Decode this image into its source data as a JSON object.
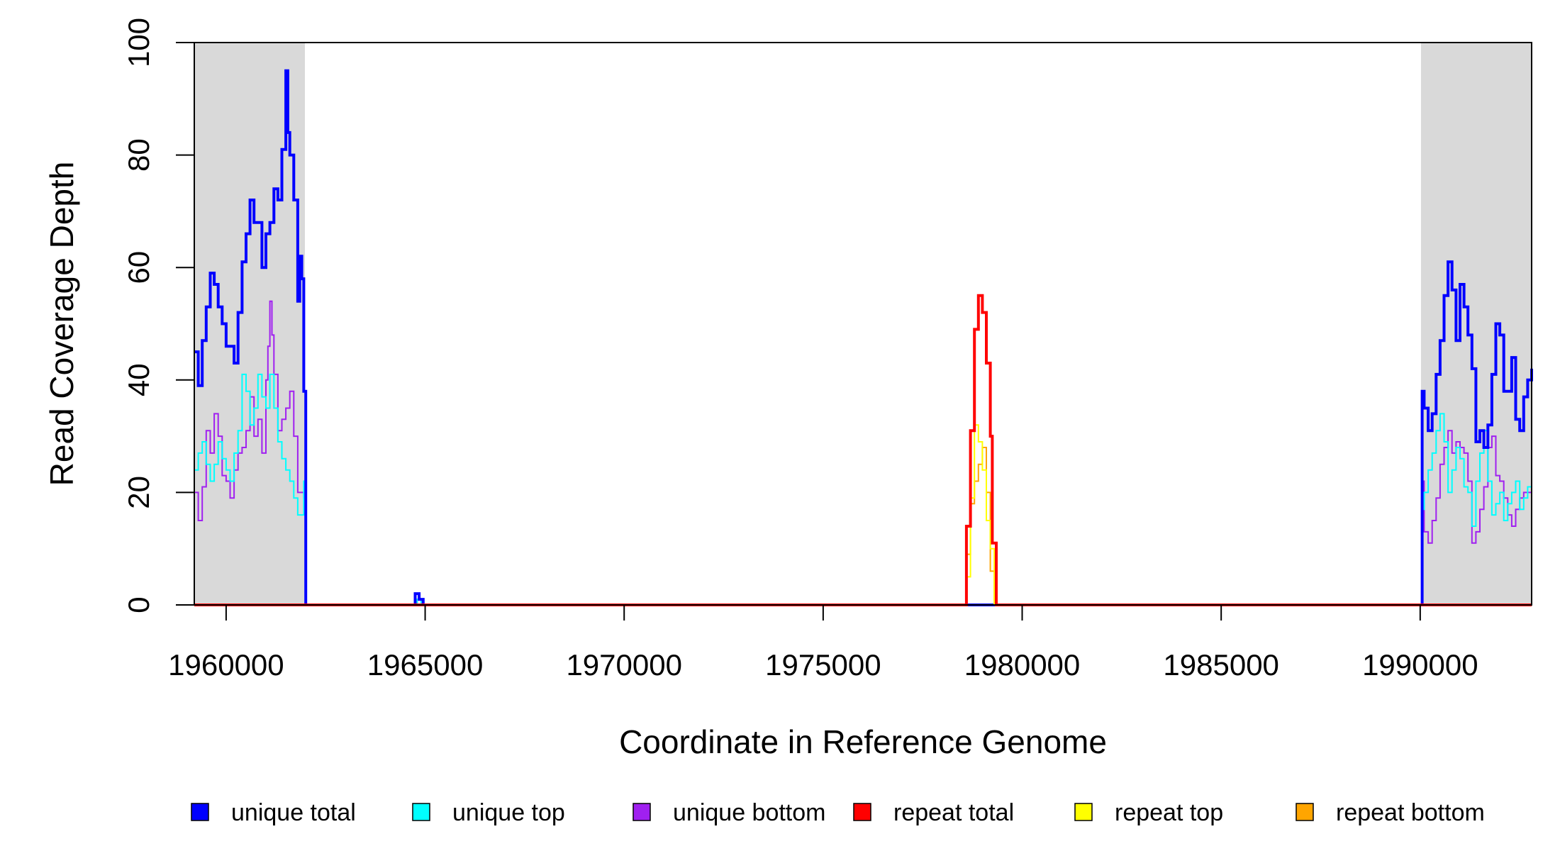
{
  "chart_data": {
    "type": "line",
    "xlabel": "Coordinate in Reference Genome",
    "ylabel": "Read Coverage Depth",
    "xlim": [
      1959200,
      1992800
    ],
    "ylim": [
      0,
      100
    ],
    "x_ticks": [
      {
        "value": 1960000,
        "label": "1960000"
      },
      {
        "value": 1965000,
        "label": "1965000"
      },
      {
        "value": 1970000,
        "label": "1970000"
      },
      {
        "value": 1975000,
        "label": "1975000"
      },
      {
        "value": 1980000,
        "label": "1980000"
      },
      {
        "value": 1985000,
        "label": "1985000"
      },
      {
        "value": 1990000,
        "label": "1990000"
      }
    ],
    "y_ticks": [
      {
        "value": 0,
        "label": "0"
      },
      {
        "value": 20,
        "label": "20"
      },
      {
        "value": 40,
        "label": "40"
      },
      {
        "value": 60,
        "label": "60"
      },
      {
        "value": 80,
        "label": "80"
      },
      {
        "value": 100,
        "label": "100"
      }
    ],
    "shaded_regions": [
      {
        "x0": 1959200,
        "x1": 1961980,
        "color": "#d9d9d9"
      },
      {
        "x0": 1990020,
        "x1": 1992800,
        "color": "#d9d9d9"
      }
    ],
    "legend_position": "bottom",
    "series": [
      {
        "name": "unique bottom",
        "color": "#a020f0",
        "width": 2,
        "points": [
          [
            1959200,
            20
          ],
          [
            1959300,
            15
          ],
          [
            1959400,
            21
          ],
          [
            1959500,
            31
          ],
          [
            1959600,
            27
          ],
          [
            1959700,
            34
          ],
          [
            1959800,
            30
          ],
          [
            1959900,
            23
          ],
          [
            1960000,
            22
          ],
          [
            1960100,
            19
          ],
          [
            1960200,
            24
          ],
          [
            1960300,
            27
          ],
          [
            1960400,
            28
          ],
          [
            1960500,
            31
          ],
          [
            1960600,
            37
          ],
          [
            1960700,
            30
          ],
          [
            1960800,
            33
          ],
          [
            1960900,
            27
          ],
          [
            1961000,
            40
          ],
          [
            1961050,
            46
          ],
          [
            1961100,
            54
          ],
          [
            1961150,
            48
          ],
          [
            1961200,
            41
          ],
          [
            1961300,
            31
          ],
          [
            1961400,
            33
          ],
          [
            1961500,
            35
          ],
          [
            1961600,
            38
          ],
          [
            1961700,
            30
          ],
          [
            1961800,
            20
          ],
          [
            1961950,
            19
          ],
          [
            1962000,
            0
          ],
          [
            1964700,
            0
          ],
          [
            1964800,
            1
          ],
          [
            1964900,
            0
          ],
          [
            1990000,
            0
          ],
          [
            1990050,
            22
          ],
          [
            1990100,
            13
          ],
          [
            1990200,
            11
          ],
          [
            1990300,
            15
          ],
          [
            1990400,
            19
          ],
          [
            1990500,
            25
          ],
          [
            1990600,
            28
          ],
          [
            1990700,
            31
          ],
          [
            1990800,
            27
          ],
          [
            1990900,
            29
          ],
          [
            1991000,
            28
          ],
          [
            1991100,
            27
          ],
          [
            1991200,
            22
          ],
          [
            1991300,
            11
          ],
          [
            1991400,
            13
          ],
          [
            1991500,
            17
          ],
          [
            1991600,
            21
          ],
          [
            1991700,
            28
          ],
          [
            1991800,
            30
          ],
          [
            1991900,
            23
          ],
          [
            1992000,
            22
          ],
          [
            1992100,
            19
          ],
          [
            1992200,
            16
          ],
          [
            1992300,
            14
          ],
          [
            1992400,
            17
          ],
          [
            1992500,
            19
          ],
          [
            1992600,
            20
          ],
          [
            1992800,
            20
          ]
        ]
      },
      {
        "name": "unique top",
        "color": "#00ffff",
        "width": 2,
        "points": [
          [
            1959200,
            24
          ],
          [
            1959300,
            27
          ],
          [
            1959400,
            29
          ],
          [
            1959500,
            25
          ],
          [
            1959600,
            22
          ],
          [
            1959700,
            25
          ],
          [
            1959800,
            29
          ],
          [
            1959900,
            26
          ],
          [
            1960000,
            24
          ],
          [
            1960100,
            22
          ],
          [
            1960200,
            27
          ],
          [
            1960300,
            31
          ],
          [
            1960400,
            41
          ],
          [
            1960500,
            38
          ],
          [
            1960600,
            32
          ],
          [
            1960700,
            35
          ],
          [
            1960800,
            41
          ],
          [
            1960900,
            37
          ],
          [
            1961000,
            35
          ],
          [
            1961100,
            41
          ],
          [
            1961200,
            35
          ],
          [
            1961300,
            29
          ],
          [
            1961400,
            26
          ],
          [
            1961500,
            24
          ],
          [
            1961600,
            22
          ],
          [
            1961700,
            19
          ],
          [
            1961800,
            16
          ],
          [
            1961950,
            22
          ],
          [
            1962000,
            0
          ],
          [
            1964700,
            0
          ],
          [
            1964800,
            1
          ],
          [
            1964900,
            0
          ],
          [
            1990000,
            0
          ],
          [
            1990050,
            17
          ],
          [
            1990100,
            20
          ],
          [
            1990200,
            24
          ],
          [
            1990300,
            27
          ],
          [
            1990400,
            31
          ],
          [
            1990500,
            34
          ],
          [
            1990600,
            29
          ],
          [
            1990700,
            20
          ],
          [
            1990800,
            24
          ],
          [
            1990900,
            28
          ],
          [
            1991000,
            26
          ],
          [
            1991100,
            21
          ],
          [
            1991200,
            20
          ],
          [
            1991300,
            14
          ],
          [
            1991400,
            22
          ],
          [
            1991500,
            27
          ],
          [
            1991600,
            31
          ],
          [
            1991700,
            22
          ],
          [
            1991800,
            16
          ],
          [
            1991900,
            18
          ],
          [
            1992000,
            20
          ],
          [
            1992100,
            15
          ],
          [
            1992200,
            18
          ],
          [
            1992300,
            20
          ],
          [
            1992400,
            22
          ],
          [
            1992500,
            17
          ],
          [
            1992600,
            19
          ],
          [
            1992700,
            21
          ],
          [
            1992800,
            21
          ]
        ]
      },
      {
        "name": "unique total",
        "color": "#0000ff",
        "width": 4,
        "points": [
          [
            1959200,
            45
          ],
          [
            1959300,
            39
          ],
          [
            1959400,
            47
          ],
          [
            1959500,
            53
          ],
          [
            1959600,
            59
          ],
          [
            1959700,
            57
          ],
          [
            1959800,
            53
          ],
          [
            1959900,
            50
          ],
          [
            1960000,
            46
          ],
          [
            1960100,
            46
          ],
          [
            1960200,
            43
          ],
          [
            1960300,
            52
          ],
          [
            1960400,
            61
          ],
          [
            1960500,
            66
          ],
          [
            1960600,
            72
          ],
          [
            1960700,
            68
          ],
          [
            1960800,
            68
          ],
          [
            1960900,
            60
          ],
          [
            1961000,
            66
          ],
          [
            1961100,
            68
          ],
          [
            1961200,
            74
          ],
          [
            1961300,
            72
          ],
          [
            1961400,
            81
          ],
          [
            1961500,
            95
          ],
          [
            1961550,
            84
          ],
          [
            1961600,
            80
          ],
          [
            1961700,
            72
          ],
          [
            1961800,
            54
          ],
          [
            1961850,
            62
          ],
          [
            1961900,
            58
          ],
          [
            1961950,
            38
          ],
          [
            1962000,
            0
          ],
          [
            1964650,
            0
          ],
          [
            1964750,
            2
          ],
          [
            1964850,
            1
          ],
          [
            1964950,
            0
          ],
          [
            1990000,
            0
          ],
          [
            1990050,
            38
          ],
          [
            1990100,
            35
          ],
          [
            1990200,
            31
          ],
          [
            1990300,
            34
          ],
          [
            1990400,
            41
          ],
          [
            1990500,
            47
          ],
          [
            1990600,
            55
          ],
          [
            1990700,
            61
          ],
          [
            1990800,
            56
          ],
          [
            1990900,
            47
          ],
          [
            1991000,
            57
          ],
          [
            1991100,
            53
          ],
          [
            1991200,
            48
          ],
          [
            1991300,
            42
          ],
          [
            1991400,
            29
          ],
          [
            1991500,
            31
          ],
          [
            1991600,
            28
          ],
          [
            1991700,
            32
          ],
          [
            1991800,
            41
          ],
          [
            1991900,
            50
          ],
          [
            1992000,
            48
          ],
          [
            1992100,
            38
          ],
          [
            1992200,
            38
          ],
          [
            1992300,
            44
          ],
          [
            1992400,
            33
          ],
          [
            1992500,
            31
          ],
          [
            1992600,
            37
          ],
          [
            1992700,
            40
          ],
          [
            1992800,
            42
          ]
        ]
      },
      {
        "name": "repeat bottom",
        "color": "#ffa500",
        "width": 2,
        "points": [
          [
            1959200,
            0
          ],
          [
            1978550,
            0
          ],
          [
            1978600,
            9
          ],
          [
            1978700,
            18
          ],
          [
            1978800,
            22
          ],
          [
            1978900,
            25
          ],
          [
            1979000,
            28
          ],
          [
            1979100,
            20
          ],
          [
            1979200,
            6
          ],
          [
            1979300,
            0
          ],
          [
            1992800,
            0
          ]
        ]
      },
      {
        "name": "repeat top",
        "color": "#ffff00",
        "width": 2,
        "points": [
          [
            1959200,
            0
          ],
          [
            1978550,
            0
          ],
          [
            1978600,
            5
          ],
          [
            1978700,
            19
          ],
          [
            1978800,
            32
          ],
          [
            1978900,
            29
          ],
          [
            1979000,
            24
          ],
          [
            1979100,
            15
          ],
          [
            1979200,
            10
          ],
          [
            1979300,
            0
          ],
          [
            1992800,
            0
          ]
        ]
      },
      {
        "name": "repeat total",
        "color": "#ff0000",
        "width": 4,
        "points": [
          [
            1959200,
            0
          ],
          [
            1978550,
            0
          ],
          [
            1978600,
            14
          ],
          [
            1978700,
            31
          ],
          [
            1978800,
            49
          ],
          [
            1978900,
            55
          ],
          [
            1979000,
            52
          ],
          [
            1979100,
            43
          ],
          [
            1979200,
            30
          ],
          [
            1979250,
            11
          ],
          [
            1979350,
            0
          ],
          [
            1992800,
            0
          ]
        ]
      }
    ]
  },
  "legend": {
    "items": [
      {
        "name": "unique total",
        "color": "#0000ff"
      },
      {
        "name": "unique top",
        "color": "#00ffff"
      },
      {
        "name": "unique bottom",
        "color": "#a020f0"
      },
      {
        "name": "repeat total",
        "color": "#ff0000"
      },
      {
        "name": "repeat top",
        "color": "#ffff00"
      },
      {
        "name": "repeat bottom",
        "color": "#ffa500"
      }
    ]
  }
}
